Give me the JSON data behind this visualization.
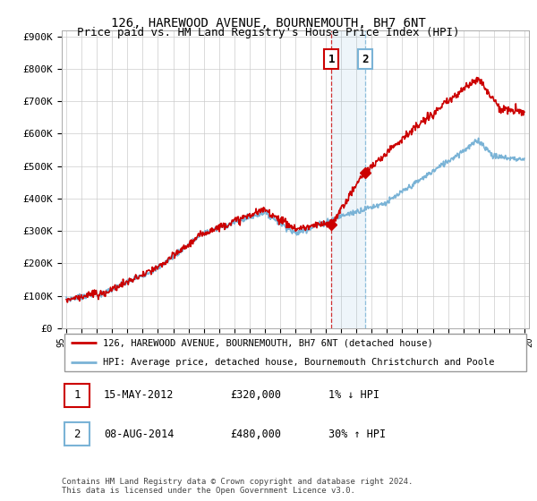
{
  "title": "126, HAREWOOD AVENUE, BOURNEMOUTH, BH7 6NT",
  "subtitle": "Price paid vs. HM Land Registry's House Price Index (HPI)",
  "ylabel_ticks": [
    "£0",
    "£100K",
    "£200K",
    "£300K",
    "£400K",
    "£500K",
    "£600K",
    "£700K",
    "£800K",
    "£900K"
  ],
  "ytick_values": [
    0,
    100000,
    200000,
    300000,
    400000,
    500000,
    600000,
    700000,
    800000,
    900000
  ],
  "ylim": [
    0,
    920000
  ],
  "xlim": [
    1994.7,
    2025.3
  ],
  "hpi_color": "#7ab3d6",
  "price_color": "#cc0000",
  "sale1_x": 2012.36,
  "sale1_y": 320000,
  "sale2_x": 2014.58,
  "sale2_y": 480000,
  "annotation1": "1",
  "annotation2": "2",
  "legend_line1": "126, HAREWOOD AVENUE, BOURNEMOUTH, BH7 6NT (detached house)",
  "legend_line2": "HPI: Average price, detached house, Bournemouth Christchurch and Poole",
  "table_row1": [
    "1",
    "15-MAY-2012",
    "£320,000",
    "1% ↓ HPI"
  ],
  "table_row2": [
    "2",
    "08-AUG-2014",
    "£480,000",
    "30% ↑ HPI"
  ],
  "footer": "Contains HM Land Registry data © Crown copyright and database right 2024.\nThis data is licensed under the Open Government Licence v3.0.",
  "background_color": "#ffffff",
  "grid_color": "#cccccc"
}
